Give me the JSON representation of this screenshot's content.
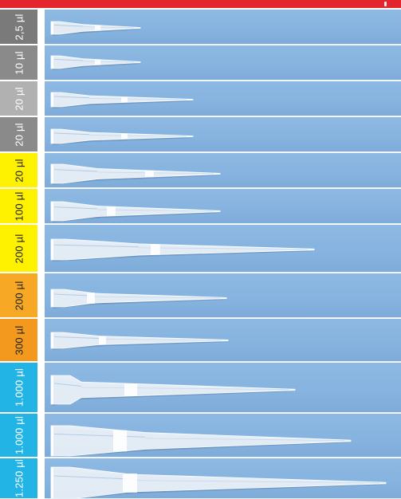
{
  "colors": {
    "header_red": "#e3262d",
    "panel_blue": "#86b3df",
    "tip_white": "#f2f7fc"
  },
  "rows": [
    {
      "label": "2,5 µl",
      "color": "#7a7a7a",
      "text_color": "#ffffff",
      "icon": "pipette-tip-icon"
    },
    {
      "label": "10 µl",
      "color": "#8a8a8a",
      "text_color": "#ffffff",
      "icon": "pipette-tip-icon"
    },
    {
      "label": "20 µl",
      "color": "#b1b1b1",
      "text_color": "#ffffff",
      "icon": "pipette-tip-icon"
    },
    {
      "label": "20 µl",
      "color": "#8a8a8a",
      "text_color": "#ffffff",
      "icon": "pipette-tip-icon"
    },
    {
      "label": "20 µl",
      "color": "#fff200",
      "text_color": "#222222",
      "icon": "pipette-tip-icon"
    },
    {
      "label": "100 µl",
      "color": "#fff200",
      "text_color": "#222222",
      "icon": "pipette-tip-icon"
    },
    {
      "label": "200 µl",
      "color": "#fff200",
      "text_color": "#222222",
      "icon": "pipette-tip-icon"
    },
    {
      "label": "200 µl",
      "color": "#f7a825",
      "text_color": "#222222",
      "icon": "pipette-tip-icon"
    },
    {
      "label": "300 µl",
      "color": "#f39a1e",
      "text_color": "#222222",
      "icon": "pipette-tip-icon"
    },
    {
      "label": "1.000 µl",
      "color": "#22b4e4",
      "text_color": "#ffffff",
      "icon": "pipette-tip-icon"
    },
    {
      "label": "1.000 µl",
      "color": "#22b4e4",
      "text_color": "#ffffff",
      "icon": "pipette-tip-icon"
    },
    {
      "label": "1.250 µl",
      "color": "#22b4e4",
      "text_color": "#ffffff",
      "icon": "pipette-tip-icon"
    }
  ]
}
